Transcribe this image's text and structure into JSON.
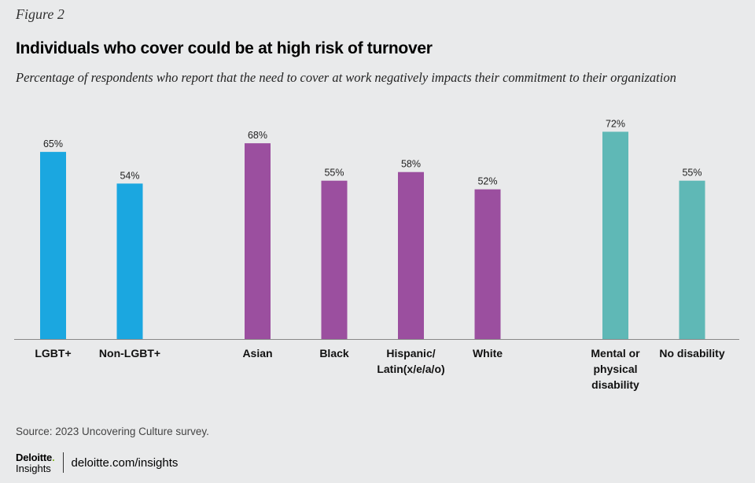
{
  "figure_label": "Figure 2",
  "title": "Individuals who cover could be at high risk of turnover",
  "subtitle": "Percentage of respondents who report that the need to cover at work negatively impacts their commitment to their organization",
  "source": "Source: 2023 Uncovering Culture survey.",
  "footer": {
    "brand": "Deloitte",
    "brand_dot": ".",
    "brand_sub": "Insights",
    "url": "deloitte.com/insights"
  },
  "colors": {
    "lgbt": "#1ba7e0",
    "race": "#9b4f9f",
    "disability": "#5fb8b6",
    "axis": "#888888"
  },
  "chart_data": {
    "type": "bar",
    "ylim": [
      0,
      100
    ],
    "grid": false,
    "value_format": "{v}%",
    "groups": [
      {
        "color_key": "lgbt",
        "bars": [
          {
            "label": [
              "LGBT+"
            ],
            "value": 65
          },
          {
            "label": [
              "Non-LGBT+"
            ],
            "value": 54
          }
        ]
      },
      {
        "color_key": "race",
        "bars": [
          {
            "label": [
              "Asian"
            ],
            "value": 68
          },
          {
            "label": [
              "Black"
            ],
            "value": 55
          },
          {
            "label": [
              "Hispanic/",
              "Latin(x/e/a/o)"
            ],
            "value": 58
          },
          {
            "label": [
              "White"
            ],
            "value": 52
          }
        ]
      },
      {
        "color_key": "disability",
        "bars": [
          {
            "label": [
              "Mental or",
              "physical",
              "disability"
            ],
            "value": 72
          },
          {
            "label": [
              "No disability"
            ],
            "value": 55
          }
        ]
      }
    ]
  }
}
